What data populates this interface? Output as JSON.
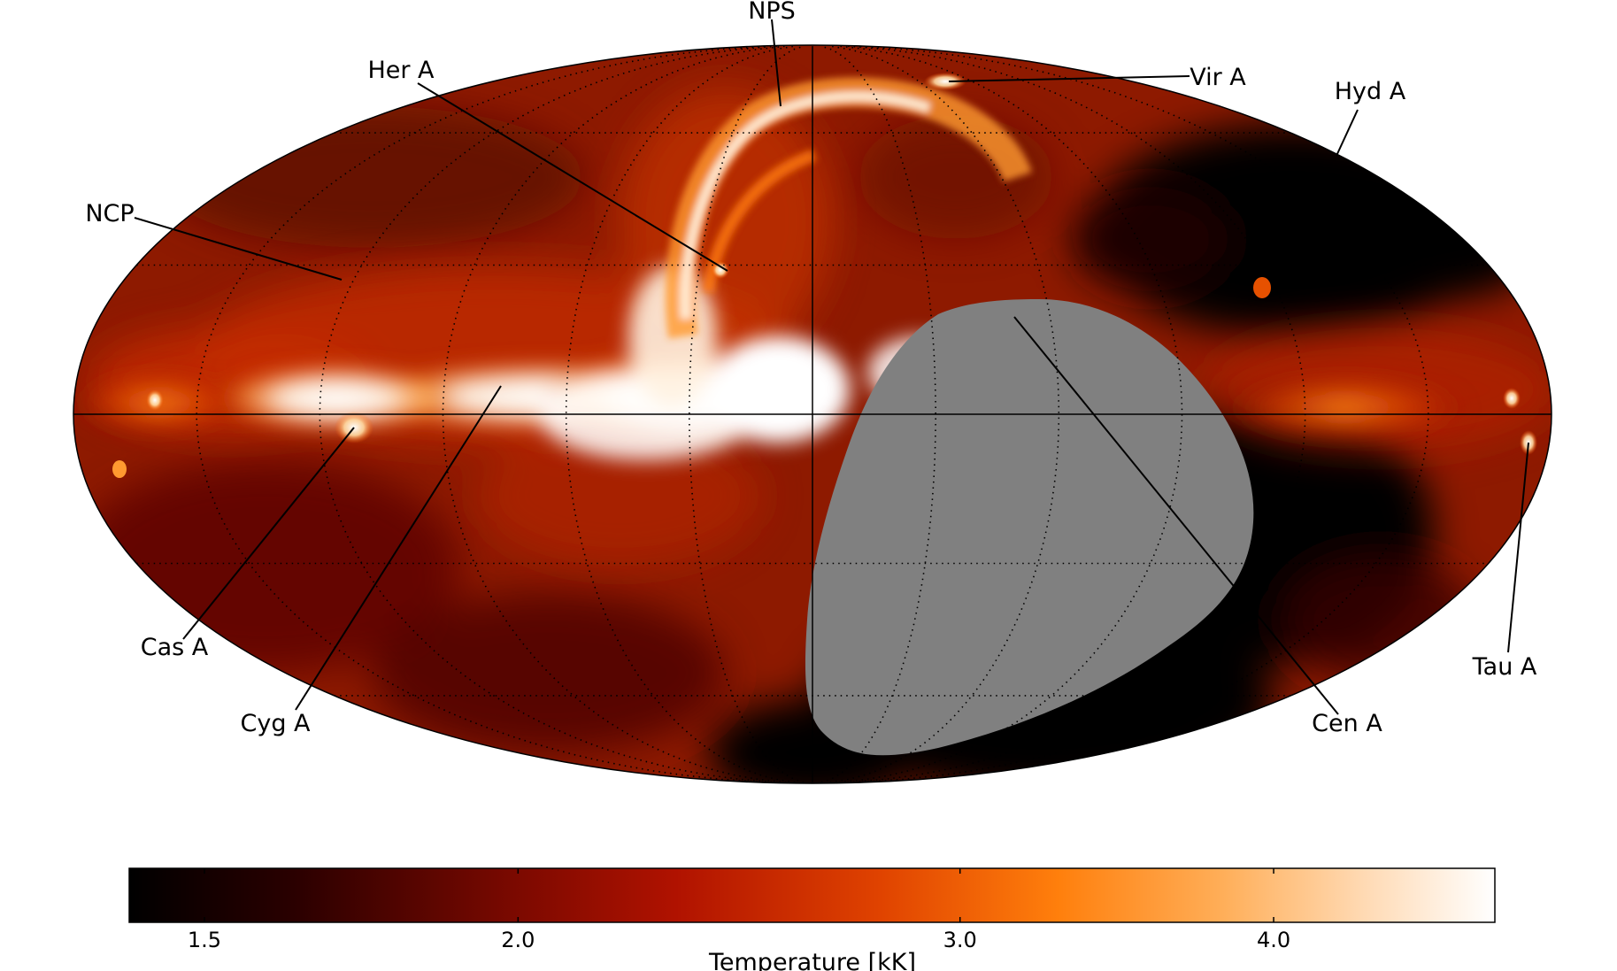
{
  "map": {
    "projection": "mollweide",
    "grid": "dotted graticule with solid central meridian and equator",
    "masked_region_color": "#808080",
    "source_labels": [
      "NPS",
      "Her A",
      "Vir A",
      "Hyd A",
      "NCP",
      "Cas A",
      "Cyg A",
      "Tau A",
      "Cen A"
    ]
  },
  "colorbar": {
    "label": "Temperature [kK]",
    "colormap": "gist_heat",
    "ticks": [
      "1.5",
      "2.0",
      "3.0",
      "4.0"
    ],
    "tick_values": [
      1.5,
      2.0,
      3.0,
      4.0
    ],
    "scale": "log",
    "range": [
      1.4,
      4.9
    ]
  },
  "colors": {
    "masked": "#808080",
    "background": "#ffffff",
    "line": "#000000"
  }
}
